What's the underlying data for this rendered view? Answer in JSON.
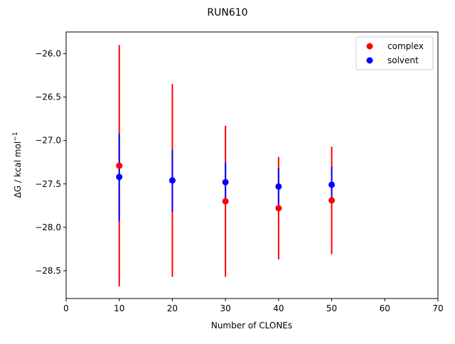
{
  "chart_data": {
    "type": "scatter",
    "title": "RUN610",
    "xlabel": "Number of CLONEs",
    "ylabel_main": "ΔG / kcal mol",
    "ylabel_sup": "−1",
    "xlim": [
      0,
      70
    ],
    "ylim": [
      -28.82,
      -25.75
    ],
    "xticks": [
      0,
      10,
      20,
      30,
      40,
      50,
      60,
      70
    ],
    "xtick_labels": [
      "0",
      "10",
      "20",
      "30",
      "40",
      "50",
      "60",
      "70"
    ],
    "yticks": [
      -28.5,
      -28.0,
      -27.5,
      -27.0,
      -26.5,
      -26.0
    ],
    "ytick_labels": [
      "−28.5",
      "−28.0",
      "−27.5",
      "−27.0",
      "−26.5",
      "−26.0"
    ],
    "grid": false,
    "legend_position": "top-right",
    "series": [
      {
        "name": "complex",
        "color": "#ff0000",
        "x": [
          10,
          20,
          30,
          40,
          50
        ],
        "y": [
          -27.29,
          -27.46,
          -27.7,
          -27.78,
          -27.69
        ],
        "err_low": [
          -28.68,
          -28.57,
          -28.57,
          -28.37,
          -28.31
        ],
        "err_high": [
          -25.9,
          -26.35,
          -26.83,
          -27.19,
          -27.07
        ]
      },
      {
        "name": "solvent",
        "color": "#0000ff",
        "x": [
          10,
          20,
          30,
          40,
          50
        ],
        "y": [
          -27.42,
          -27.46,
          -27.48,
          -27.53,
          -27.51
        ],
        "err_low": [
          -27.93,
          -27.82,
          -27.71,
          -27.74,
          -27.72
        ],
        "err_high": [
          -26.92,
          -27.11,
          -27.25,
          -27.32,
          -27.3
        ]
      }
    ]
  }
}
